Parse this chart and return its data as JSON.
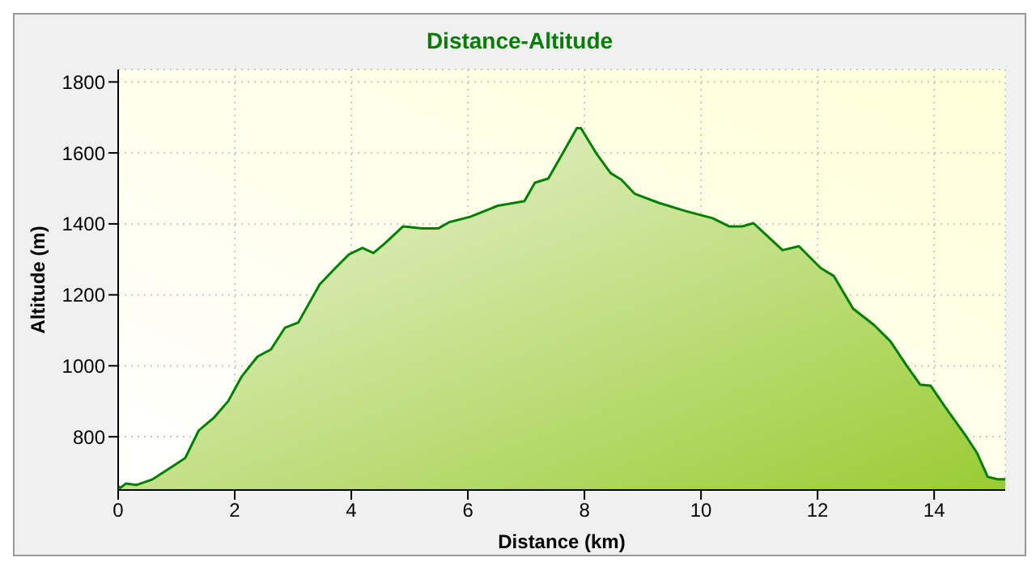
{
  "chart_data": {
    "type": "area",
    "title": "Distance-Altitude",
    "xlabel": "Distance (km)",
    "ylabel": "Altitude (m)",
    "x": [
      0,
      0.04,
      0.13,
      0.31,
      0.59,
      0.87,
      1.15,
      1.38,
      1.65,
      1.89,
      2.12,
      2.39,
      2.62,
      2.86,
      3.09,
      3.46,
      3.73,
      3.96,
      4.19,
      4.38,
      4.57,
      4.89,
      5.21,
      5.49,
      5.68,
      6.04,
      6.51,
      6.97,
      7.15,
      7.38,
      7.62,
      7.87,
      7.94,
      8.21,
      8.45,
      8.63,
      8.86,
      9.28,
      9.74,
      10.2,
      10.48,
      10.71,
      10.9,
      11.13,
      11.4,
      11.68,
      12.05,
      12.28,
      12.61,
      12.97,
      13.25,
      13.53,
      13.76,
      13.94,
      14.18,
      14.55,
      14.73,
      14.92,
      15.1,
      15.22
    ],
    "series": [
      {
        "color": "#008000",
        "values": [
          660,
          656,
          668,
          664,
          680,
          710,
          740,
          817,
          855,
          901,
          970,
          1026,
          1046,
          1107,
          1122,
          1230,
          1276,
          1314,
          1332,
          1318,
          1344,
          1393,
          1387,
          1387,
          1405,
          1420,
          1451,
          1464,
          1516,
          1528,
          1597,
          1670,
          1670,
          1597,
          1543,
          1525,
          1485,
          1459,
          1436,
          1416,
          1393,
          1393,
          1402,
          1367,
          1326,
          1337,
          1276,
          1253,
          1161,
          1115,
          1069,
          1000,
          947,
          944,
          886,
          801,
          756,
          687,
          680,
          680
        ]
      }
    ],
    "xlim": [
      0,
      15.22
    ],
    "ylim": [
      650,
      1835
    ],
    "xticks": [
      0,
      2,
      4,
      6,
      8,
      10,
      12,
      14
    ],
    "yticks": [
      800,
      1000,
      1200,
      1400,
      1600,
      1800
    ],
    "grid": true
  }
}
